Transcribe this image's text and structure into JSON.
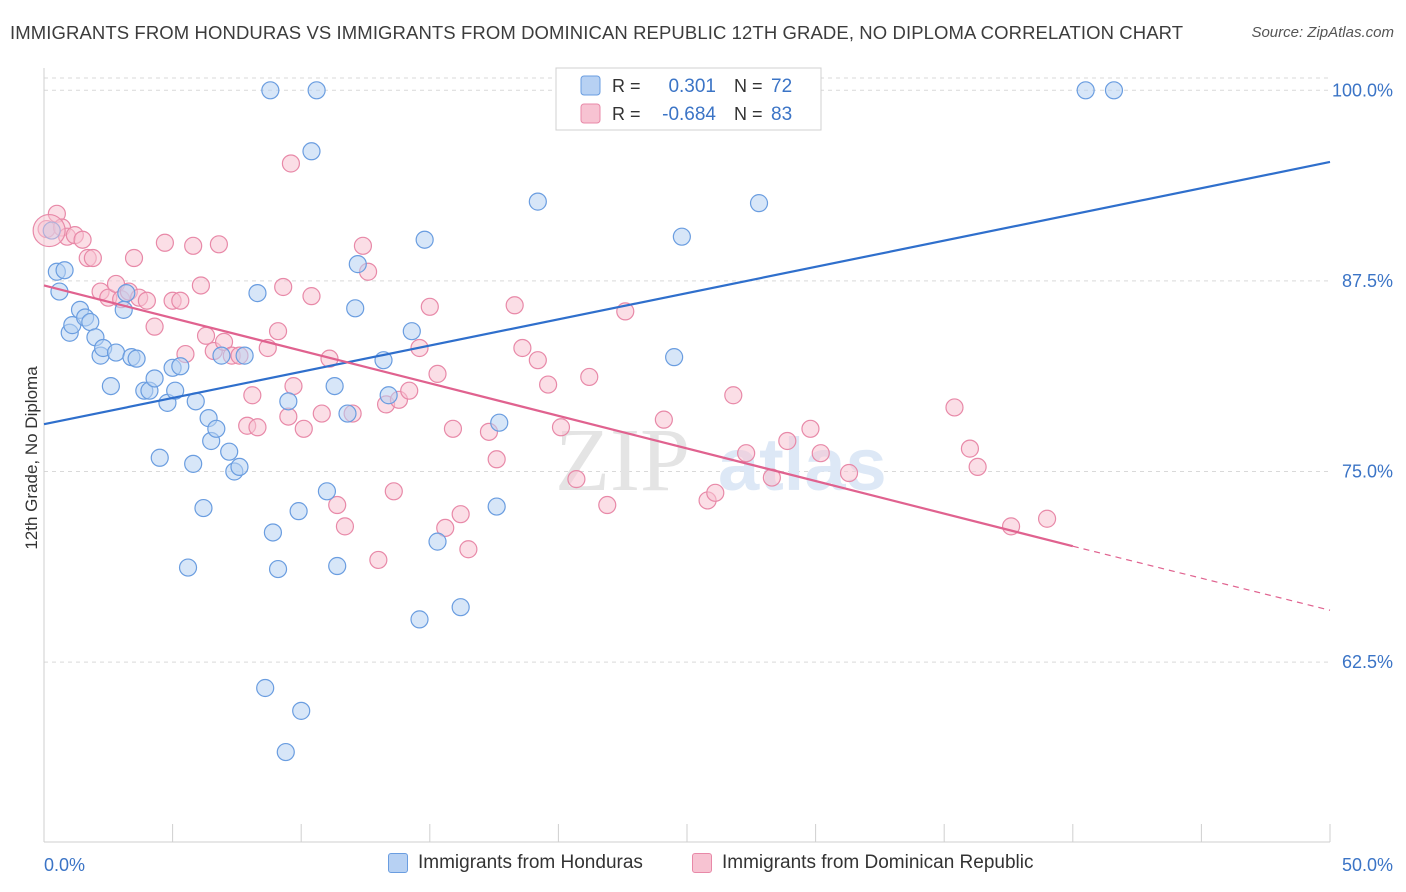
{
  "title": "IMMIGRANTS FROM HONDURAS VS IMMIGRANTS FROM DOMINICAN REPUBLIC 12TH GRADE, NO DIPLOMA CORRELATION CHART",
  "source": "Source: ZipAtlas.com",
  "watermark": {
    "zip": "ZIP",
    "atlas": "atlas"
  },
  "colors": {
    "blue_fill": "#b7d1f3",
    "blue_stroke": "#6a9de0",
    "blue_line": "#2f6fcc",
    "pink_fill": "#f7c3d2",
    "pink_stroke": "#e889a8",
    "pink_line": "#e0628f",
    "axis_label": "#3b74c6",
    "grid": "#d9d9d9"
  },
  "legend": {
    "rows": [
      {
        "r_label": "R =",
        "r_value": "0.301",
        "n_label": "N =",
        "n_value": "72"
      },
      {
        "r_label": "R =",
        "r_value": "-0.684",
        "n_label": "N =",
        "n_value": "83"
      }
    ]
  },
  "chart_data": {
    "type": "scatter",
    "title": "IMMIGRANTS FROM HONDURAS VS IMMIGRANTS FROM DOMINICAN REPUBLIC 12TH GRADE, NO DIPLOMA CORRELATION CHART",
    "xlabel": "",
    "ylabel": "12th Grade, No Diploma",
    "xlim": [
      0,
      50
    ],
    "ylim": [
      50.7,
      101.2
    ],
    "x_tick_labels": [
      "0.0%",
      "50.0%"
    ],
    "y_ticks": [
      62.5,
      75.0,
      87.5,
      100.0
    ],
    "y_tick_labels": [
      "62.5%",
      "75.0%",
      "87.5%",
      "100.0%"
    ],
    "grid": true,
    "legend_position": "top-center",
    "series": [
      {
        "name": "Immigrants from Honduras",
        "r": 0.301,
        "n": 72,
        "trend": {
          "x": [
            0,
            50
          ],
          "y": [
            78.1,
            95.3
          ]
        },
        "points": [
          [
            0.3,
            90.8
          ],
          [
            0.5,
            88.1
          ],
          [
            0.6,
            86.8
          ],
          [
            0.8,
            88.2
          ],
          [
            1.0,
            84.1
          ],
          [
            1.1,
            84.6
          ],
          [
            1.4,
            85.6
          ],
          [
            1.6,
            85.1
          ],
          [
            1.8,
            84.8
          ],
          [
            2.0,
            83.8
          ],
          [
            2.2,
            82.6
          ],
          [
            2.3,
            83.1
          ],
          [
            2.6,
            80.6
          ],
          [
            2.8,
            82.8
          ],
          [
            3.1,
            85.6
          ],
          [
            3.2,
            86.7
          ],
          [
            3.4,
            82.5
          ],
          [
            3.6,
            82.4
          ],
          [
            3.9,
            80.3
          ],
          [
            4.1,
            80.3
          ],
          [
            4.3,
            81.1
          ],
          [
            4.5,
            75.9
          ],
          [
            4.8,
            79.5
          ],
          [
            5.0,
            81.8
          ],
          [
            5.1,
            80.3
          ],
          [
            5.3,
            81.9
          ],
          [
            5.6,
            68.7
          ],
          [
            5.8,
            75.5
          ],
          [
            5.9,
            79.6
          ],
          [
            6.2,
            72.6
          ],
          [
            6.4,
            78.5
          ],
          [
            6.5,
            77.0
          ],
          [
            6.7,
            77.8
          ],
          [
            6.9,
            82.6
          ],
          [
            7.2,
            76.3
          ],
          [
            7.4,
            75.0
          ],
          [
            7.6,
            75.3
          ],
          [
            7.8,
            82.6
          ],
          [
            8.3,
            86.7
          ],
          [
            8.6,
            60.8
          ],
          [
            8.8,
            100.0
          ],
          [
            8.9,
            71.0
          ],
          [
            9.1,
            68.6
          ],
          [
            9.4,
            56.6
          ],
          [
            9.5,
            79.6
          ],
          [
            9.9,
            72.4
          ],
          [
            10.0,
            59.3
          ],
          [
            10.4,
            96.0
          ],
          [
            10.6,
            100.0
          ],
          [
            11.0,
            73.7
          ],
          [
            11.3,
            80.6
          ],
          [
            11.4,
            68.8
          ],
          [
            11.8,
            78.8
          ],
          [
            12.1,
            85.7
          ],
          [
            12.2,
            88.6
          ],
          [
            13.2,
            82.3
          ],
          [
            13.4,
            80.0
          ],
          [
            14.3,
            84.2
          ],
          [
            14.6,
            65.3
          ],
          [
            14.8,
            90.2
          ],
          [
            15.3,
            70.4
          ],
          [
            16.2,
            66.1
          ],
          [
            17.6,
            72.7
          ],
          [
            17.7,
            78.2
          ],
          [
            19.2,
            92.7
          ],
          [
            24.5,
            82.5
          ],
          [
            24.8,
            90.4
          ],
          [
            25.1,
            100.0
          ],
          [
            27.2,
            100.0
          ],
          [
            27.8,
            92.6
          ],
          [
            40.5,
            100.0
          ],
          [
            41.6,
            100.0
          ]
        ]
      },
      {
        "name": "Immigrants from Dominican Republic",
        "r": -0.684,
        "n": 83,
        "trend": {
          "x": [
            0,
            40
          ],
          "y": [
            87.2,
            70.1
          ]
        },
        "trend_dashed": {
          "x": [
            40,
            50
          ],
          "y": [
            70.1,
            65.9
          ]
        },
        "points": [
          [
            0.1,
            90.9
          ],
          [
            0.5,
            91.9
          ],
          [
            0.7,
            91.0
          ],
          [
            0.9,
            90.4
          ],
          [
            1.2,
            90.5
          ],
          [
            1.5,
            90.2
          ],
          [
            1.7,
            89.0
          ],
          [
            1.9,
            89.0
          ],
          [
            2.2,
            86.8
          ],
          [
            2.5,
            86.4
          ],
          [
            2.8,
            87.3
          ],
          [
            3.0,
            86.3
          ],
          [
            3.3,
            86.8
          ],
          [
            3.5,
            89.0
          ],
          [
            3.7,
            86.4
          ],
          [
            4.0,
            86.2
          ],
          [
            4.3,
            84.5
          ],
          [
            4.7,
            90.0
          ],
          [
            5.0,
            86.2
          ],
          [
            5.3,
            86.2
          ],
          [
            5.5,
            82.7
          ],
          [
            5.8,
            89.8
          ],
          [
            6.1,
            87.2
          ],
          [
            6.3,
            83.9
          ],
          [
            6.6,
            82.9
          ],
          [
            6.8,
            89.9
          ],
          [
            7.0,
            83.5
          ],
          [
            7.3,
            82.6
          ],
          [
            7.6,
            82.6
          ],
          [
            7.9,
            78.0
          ],
          [
            8.1,
            80.0
          ],
          [
            8.3,
            77.9
          ],
          [
            8.7,
            83.1
          ],
          [
            9.1,
            84.2
          ],
          [
            9.3,
            87.1
          ],
          [
            9.5,
            78.6
          ],
          [
            9.7,
            80.6
          ],
          [
            10.1,
            77.8
          ],
          [
            10.4,
            86.5
          ],
          [
            10.8,
            78.8
          ],
          [
            11.1,
            82.4
          ],
          [
            11.4,
            72.8
          ],
          [
            11.7,
            71.4
          ],
          [
            12.0,
            78.8
          ],
          [
            12.4,
            89.8
          ],
          [
            12.6,
            88.1
          ],
          [
            13.0,
            69.2
          ],
          [
            13.3,
            79.4
          ],
          [
            13.6,
            73.7
          ],
          [
            13.8,
            79.7
          ],
          [
            14.2,
            80.3
          ],
          [
            14.6,
            83.1
          ],
          [
            15.0,
            85.8
          ],
          [
            15.3,
            81.4
          ],
          [
            15.6,
            71.3
          ],
          [
            15.9,
            77.8
          ],
          [
            16.2,
            72.2
          ],
          [
            16.5,
            69.9
          ],
          [
            17.3,
            77.6
          ],
          [
            17.6,
            75.8
          ],
          [
            18.3,
            85.9
          ],
          [
            18.6,
            83.1
          ],
          [
            19.2,
            82.3
          ],
          [
            19.6,
            80.7
          ],
          [
            20.1,
            77.9
          ],
          [
            20.7,
            74.5
          ],
          [
            21.2,
            81.2
          ],
          [
            21.9,
            72.8
          ],
          [
            22.6,
            85.5
          ],
          [
            24.1,
            78.4
          ],
          [
            25.8,
            73.1
          ],
          [
            26.1,
            73.6
          ],
          [
            26.8,
            80.0
          ],
          [
            27.3,
            76.2
          ],
          [
            28.3,
            74.6
          ],
          [
            28.9,
            77.0
          ],
          [
            29.8,
            77.8
          ],
          [
            30.2,
            76.2
          ],
          [
            31.3,
            74.9
          ],
          [
            35.4,
            79.2
          ],
          [
            36.0,
            76.5
          ],
          [
            36.3,
            75.3
          ],
          [
            37.6,
            71.4
          ],
          [
            39.0,
            71.9
          ],
          [
            9.6,
            95.2
          ]
        ]
      }
    ]
  }
}
